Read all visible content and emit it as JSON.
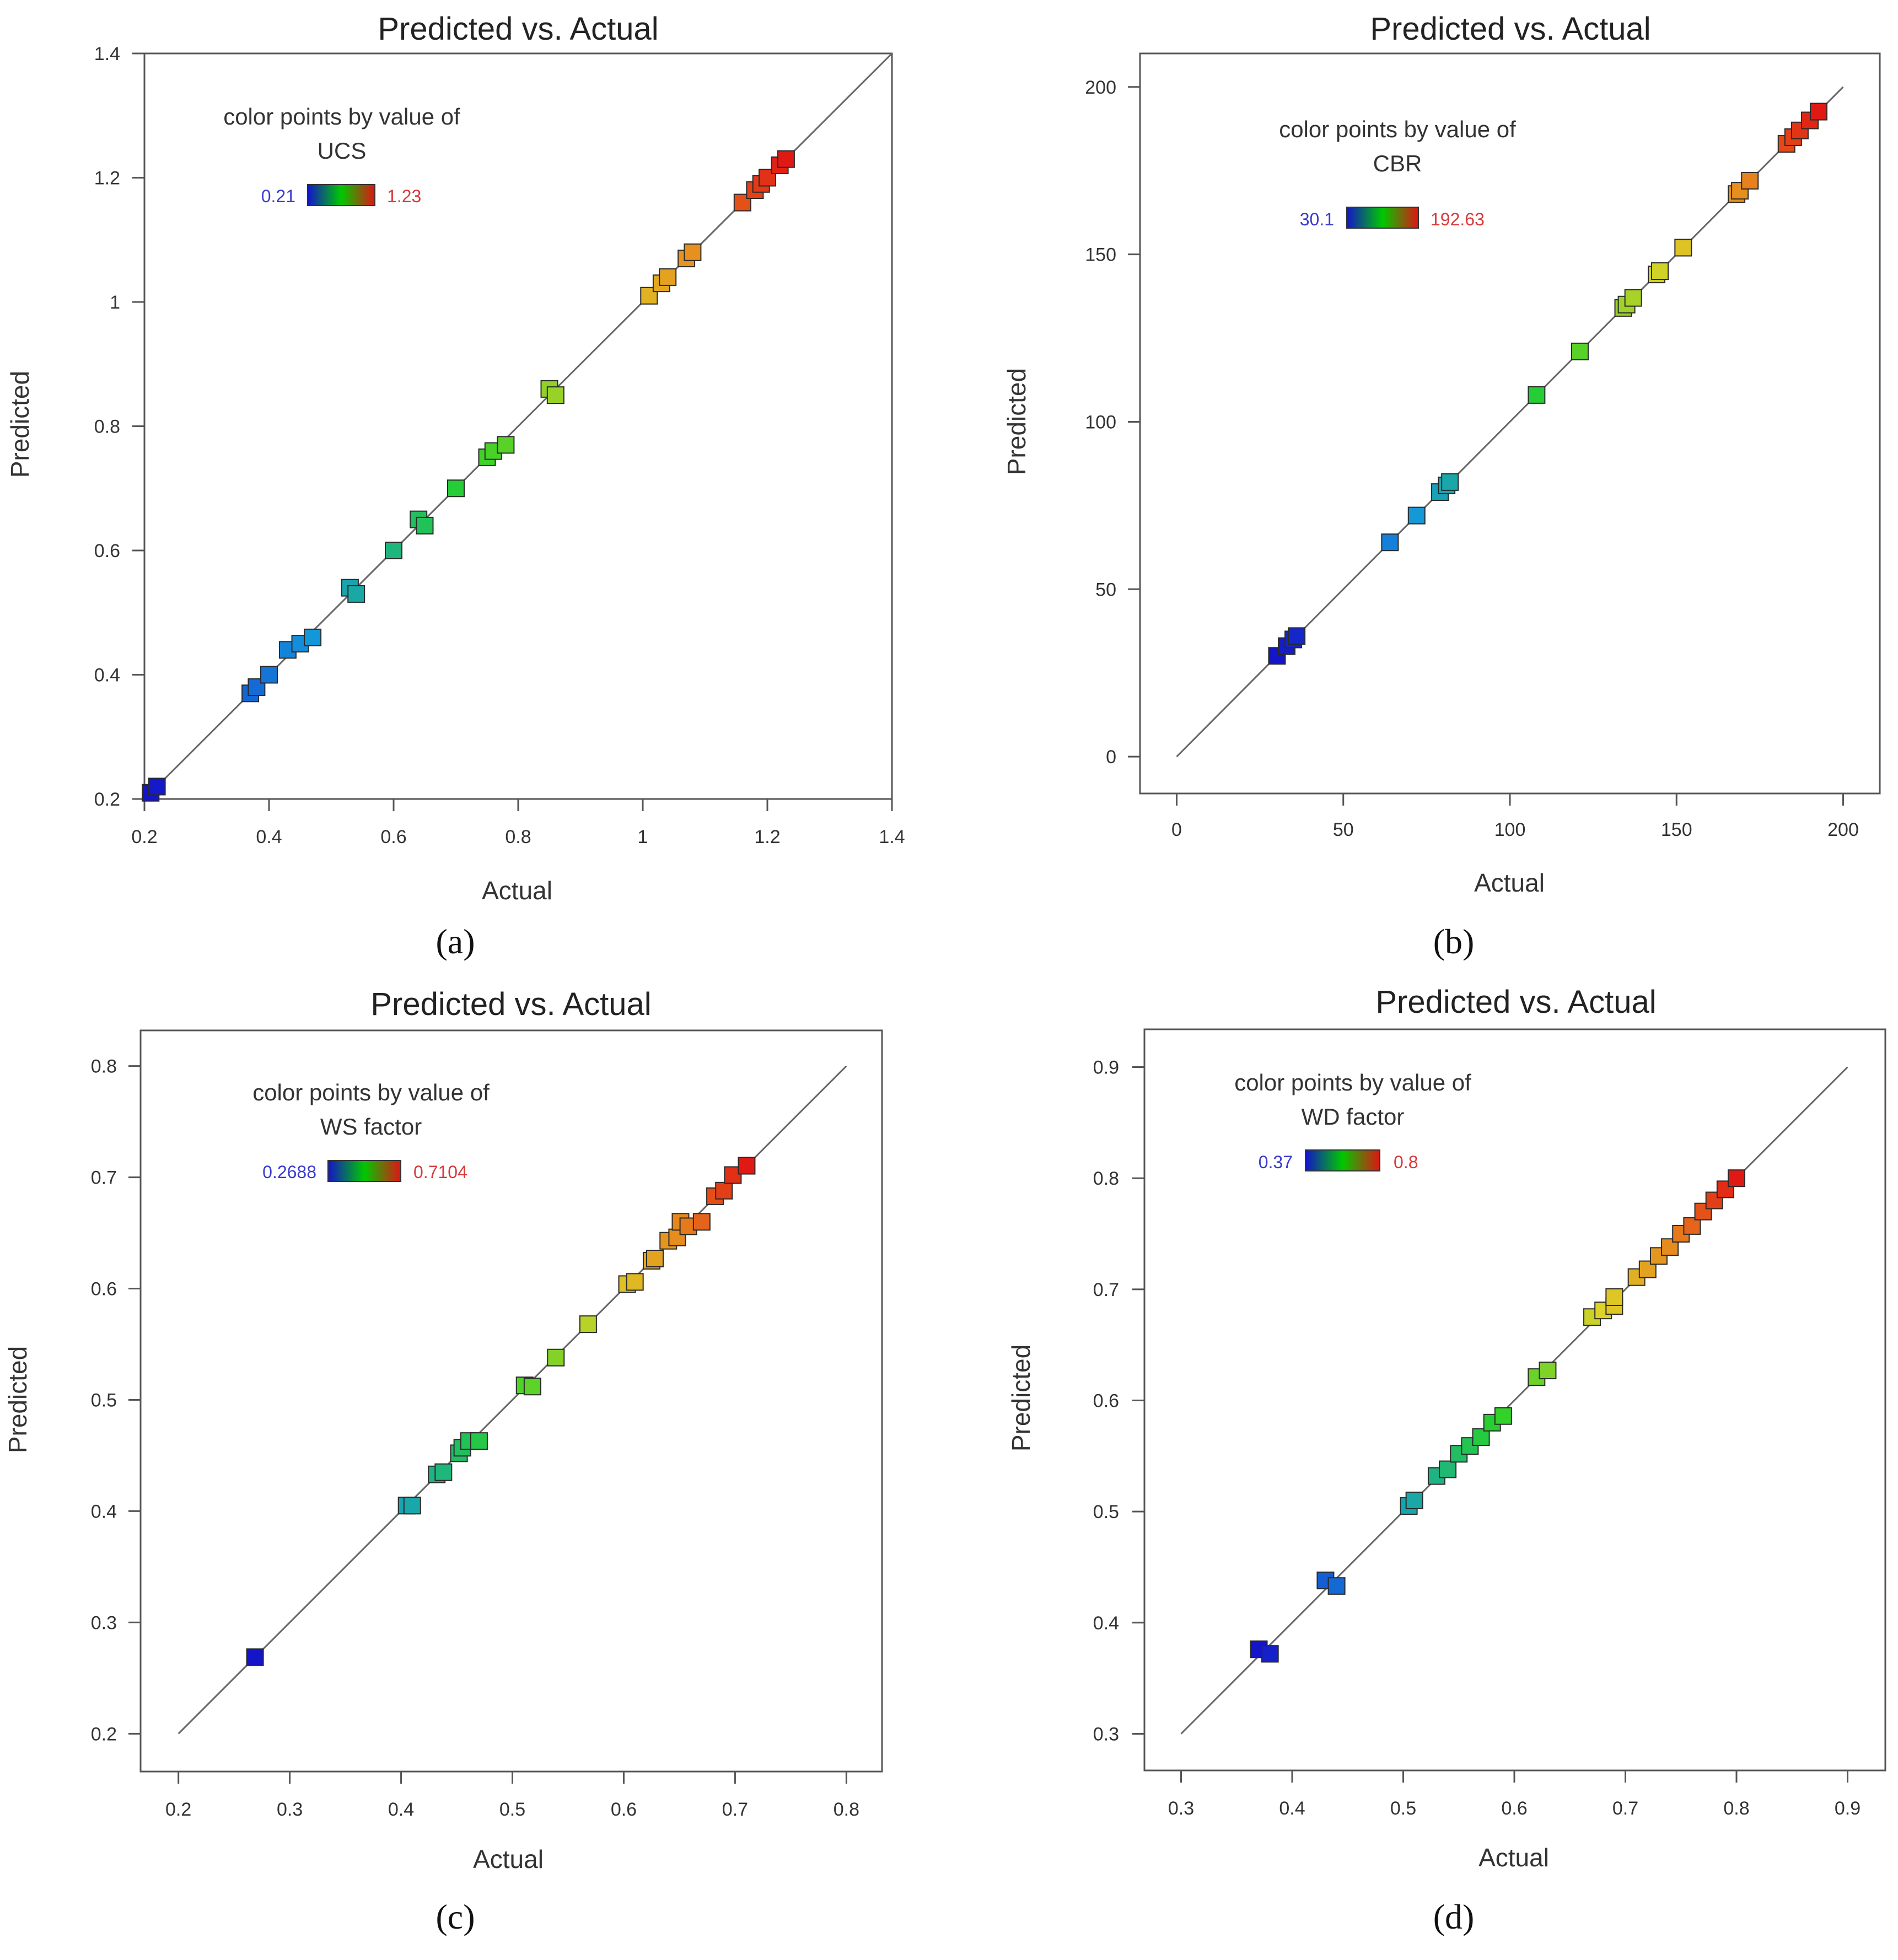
{
  "chart_data": [
    {
      "type": "scatter",
      "panel_label": "(a)",
      "panel_letter": "a",
      "title": "Predicted vs. Actual",
      "xlabel": "Actual",
      "ylabel": "Predicted",
      "xlim": [
        0.2,
        1.4
      ],
      "ylim": [
        0.2,
        1.4
      ],
      "xticks": [
        0.2,
        0.4,
        0.6,
        0.8,
        1.0,
        1.2,
        1.4
      ],
      "yticks": [
        0.2,
        0.4,
        0.6,
        0.8,
        1.0,
        1.2,
        1.4
      ],
      "xtick_labels": [
        "0.2",
        "0.4",
        "0.6",
        "0.8",
        "1",
        "1.2",
        "1.4"
      ],
      "ytick_labels": [
        "0.2",
        "0.4",
        "0.6",
        "0.8",
        "1",
        "1.2",
        "1.4"
      ],
      "diagonal": [
        0.2,
        1.4
      ],
      "legend_title": "color points by value of",
      "legend_variable": "UCS",
      "legend_min": "0.21",
      "legend_max": "1.23",
      "color_min": 0.21,
      "color_max": 1.23,
      "points": [
        {
          "x": 0.21,
          "y": 0.21
        },
        {
          "x": 0.22,
          "y": 0.22
        },
        {
          "x": 0.37,
          "y": 0.37
        },
        {
          "x": 0.38,
          "y": 0.38
        },
        {
          "x": 0.4,
          "y": 0.4
        },
        {
          "x": 0.43,
          "y": 0.44
        },
        {
          "x": 0.45,
          "y": 0.45
        },
        {
          "x": 0.47,
          "y": 0.46
        },
        {
          "x": 0.53,
          "y": 0.54
        },
        {
          "x": 0.54,
          "y": 0.53
        },
        {
          "x": 0.6,
          "y": 0.6
        },
        {
          "x": 0.64,
          "y": 0.65
        },
        {
          "x": 0.65,
          "y": 0.64
        },
        {
          "x": 0.7,
          "y": 0.7
        },
        {
          "x": 0.75,
          "y": 0.75
        },
        {
          "x": 0.76,
          "y": 0.76
        },
        {
          "x": 0.78,
          "y": 0.77
        },
        {
          "x": 0.85,
          "y": 0.86
        },
        {
          "x": 0.86,
          "y": 0.85
        },
        {
          "x": 1.01,
          "y": 1.01
        },
        {
          "x": 1.03,
          "y": 1.03
        },
        {
          "x": 1.04,
          "y": 1.04
        },
        {
          "x": 1.07,
          "y": 1.07
        },
        {
          "x": 1.08,
          "y": 1.08
        },
        {
          "x": 1.16,
          "y": 1.16
        },
        {
          "x": 1.18,
          "y": 1.18
        },
        {
          "x": 1.19,
          "y": 1.19
        },
        {
          "x": 1.2,
          "y": 1.2
        },
        {
          "x": 1.22,
          "y": 1.22
        },
        {
          "x": 1.23,
          "y": 1.23
        }
      ]
    },
    {
      "type": "scatter",
      "panel_label": "(b)",
      "panel_letter": "b",
      "title": "Predicted vs. Actual",
      "xlabel": "Actual",
      "ylabel": "Predicted",
      "xlim": [
        -11,
        211
      ],
      "ylim": [
        -11,
        210
      ],
      "xticks": [
        0,
        50,
        100,
        150,
        200
      ],
      "yticks": [
        0,
        50,
        100,
        150,
        200
      ],
      "xtick_labels": [
        "0",
        "50",
        "100",
        "150",
        "200"
      ],
      "ytick_labels": [
        "0",
        "50",
        "100",
        "150",
        "200"
      ],
      "diagonal": [
        0,
        200
      ],
      "legend_title": "color points by value of",
      "legend_variable": "CBR",
      "legend_min": "30.1",
      "legend_max": "192.63",
      "color_min": 30.1,
      "color_max": 192.63,
      "points": [
        {
          "x": 30.1,
          "y": 30.1
        },
        {
          "x": 33,
          "y": 33
        },
        {
          "x": 35,
          "y": 35
        },
        {
          "x": 36,
          "y": 36
        },
        {
          "x": 64,
          "y": 64
        },
        {
          "x": 72,
          "y": 72
        },
        {
          "x": 79,
          "y": 79
        },
        {
          "x": 81,
          "y": 81
        },
        {
          "x": 82,
          "y": 82
        },
        {
          "x": 108,
          "y": 108
        },
        {
          "x": 121,
          "y": 121
        },
        {
          "x": 134,
          "y": 134
        },
        {
          "x": 135,
          "y": 135
        },
        {
          "x": 137,
          "y": 137
        },
        {
          "x": 144,
          "y": 144
        },
        {
          "x": 145,
          "y": 145
        },
        {
          "x": 152,
          "y": 152
        },
        {
          "x": 168,
          "y": 168
        },
        {
          "x": 169,
          "y": 169
        },
        {
          "x": 172,
          "y": 172
        },
        {
          "x": 183,
          "y": 183
        },
        {
          "x": 185,
          "y": 185
        },
        {
          "x": 187,
          "y": 187
        },
        {
          "x": 190,
          "y": 190
        },
        {
          "x": 192.63,
          "y": 192.63
        }
      ]
    },
    {
      "type": "scatter",
      "panel_label": "(c)",
      "panel_letter": "c",
      "title": "Predicted vs. Actual",
      "xlabel": "Actual",
      "ylabel": "Predicted",
      "xlim": [
        0.166,
        0.832
      ],
      "ylim": [
        0.166,
        0.832
      ],
      "xticks": [
        0.2,
        0.3,
        0.4,
        0.5,
        0.6,
        0.7,
        0.8
      ],
      "yticks": [
        0.2,
        0.3,
        0.4,
        0.5,
        0.6,
        0.7,
        0.8
      ],
      "xtick_labels": [
        "0.2",
        "0.3",
        "0.4",
        "0.5",
        "0.6",
        "0.7",
        "0.8"
      ],
      "ytick_labels": [
        "0.2",
        "0.3",
        "0.4",
        "0.5",
        "0.6",
        "0.7",
        "0.8"
      ],
      "diagonal": [
        0.2,
        0.8
      ],
      "legend_title": "color points by value of",
      "legend_variable": "WS factor",
      "legend_min": "0.2688",
      "legend_max": "0.7104",
      "color_min": 0.2688,
      "color_max": 0.7104,
      "points": [
        {
          "x": 0.2688,
          "y": 0.2688
        },
        {
          "x": 0.405,
          "y": 0.405
        },
        {
          "x": 0.41,
          "y": 0.405
        },
        {
          "x": 0.432,
          "y": 0.433
        },
        {
          "x": 0.438,
          "y": 0.435
        },
        {
          "x": 0.452,
          "y": 0.452
        },
        {
          "x": 0.455,
          "y": 0.457
        },
        {
          "x": 0.461,
          "y": 0.463
        },
        {
          "x": 0.47,
          "y": 0.463
        },
        {
          "x": 0.511,
          "y": 0.513
        },
        {
          "x": 0.518,
          "y": 0.512
        },
        {
          "x": 0.539,
          "y": 0.538
        },
        {
          "x": 0.568,
          "y": 0.568
        },
        {
          "x": 0.603,
          "y": 0.604
        },
        {
          "x": 0.61,
          "y": 0.606
        },
        {
          "x": 0.625,
          "y": 0.625
        },
        {
          "x": 0.628,
          "y": 0.627
        },
        {
          "x": 0.64,
          "y": 0.643
        },
        {
          "x": 0.648,
          "y": 0.646
        },
        {
          "x": 0.651,
          "y": 0.66
        },
        {
          "x": 0.658,
          "y": 0.656
        },
        {
          "x": 0.67,
          "y": 0.66
        },
        {
          "x": 0.682,
          "y": 0.683
        },
        {
          "x": 0.69,
          "y": 0.688
        },
        {
          "x": 0.698,
          "y": 0.702
        },
        {
          "x": 0.7104,
          "y": 0.7104
        }
      ]
    },
    {
      "type": "scatter",
      "panel_label": "(d)",
      "panel_letter": "d",
      "title": "Predicted vs. Actual",
      "xlabel": "Actual",
      "ylabel": "Predicted",
      "xlim": [
        0.267,
        0.934
      ],
      "ylim": [
        0.267,
        0.934
      ],
      "xticks": [
        0.3,
        0.4,
        0.5,
        0.6,
        0.7,
        0.8,
        0.9
      ],
      "yticks": [
        0.3,
        0.4,
        0.5,
        0.6,
        0.7,
        0.8,
        0.9
      ],
      "xtick_labels": [
        "0.3",
        "0.4",
        "0.5",
        "0.6",
        "0.7",
        "0.8",
        "0.9"
      ],
      "ytick_labels": [
        "0.3",
        "0.4",
        "0.5",
        "0.6",
        "0.7",
        "0.8",
        "0.9"
      ],
      "diagonal": [
        0.3,
        0.9
      ],
      "legend_title": "color points by value of",
      "legend_variable": "WD factor",
      "legend_min": "0.37",
      "legend_max": "0.8",
      "color_min": 0.37,
      "color_max": 0.8,
      "points": [
        {
          "x": 0.37,
          "y": 0.376
        },
        {
          "x": 0.38,
          "y": 0.372
        },
        {
          "x": 0.43,
          "y": 0.438
        },
        {
          "x": 0.44,
          "y": 0.433
        },
        {
          "x": 0.505,
          "y": 0.505
        },
        {
          "x": 0.51,
          "y": 0.51
        },
        {
          "x": 0.53,
          "y": 0.532
        },
        {
          "x": 0.54,
          "y": 0.538
        },
        {
          "x": 0.55,
          "y": 0.552
        },
        {
          "x": 0.56,
          "y": 0.559
        },
        {
          "x": 0.57,
          "y": 0.567
        },
        {
          "x": 0.58,
          "y": 0.58
        },
        {
          "x": 0.59,
          "y": 0.586
        },
        {
          "x": 0.62,
          "y": 0.621
        },
        {
          "x": 0.63,
          "y": 0.627
        },
        {
          "x": 0.67,
          "y": 0.675
        },
        {
          "x": 0.68,
          "y": 0.681
        },
        {
          "x": 0.69,
          "y": 0.685
        },
        {
          "x": 0.69,
          "y": 0.693
        },
        {
          "x": 0.71,
          "y": 0.711
        },
        {
          "x": 0.72,
          "y": 0.718
        },
        {
          "x": 0.73,
          "y": 0.73
        },
        {
          "x": 0.74,
          "y": 0.738
        },
        {
          "x": 0.75,
          "y": 0.75
        },
        {
          "x": 0.76,
          "y": 0.757
        },
        {
          "x": 0.77,
          "y": 0.77
        },
        {
          "x": 0.78,
          "y": 0.78
        },
        {
          "x": 0.79,
          "y": 0.79
        },
        {
          "x": 0.8,
          "y": 0.8
        }
      ]
    }
  ]
}
